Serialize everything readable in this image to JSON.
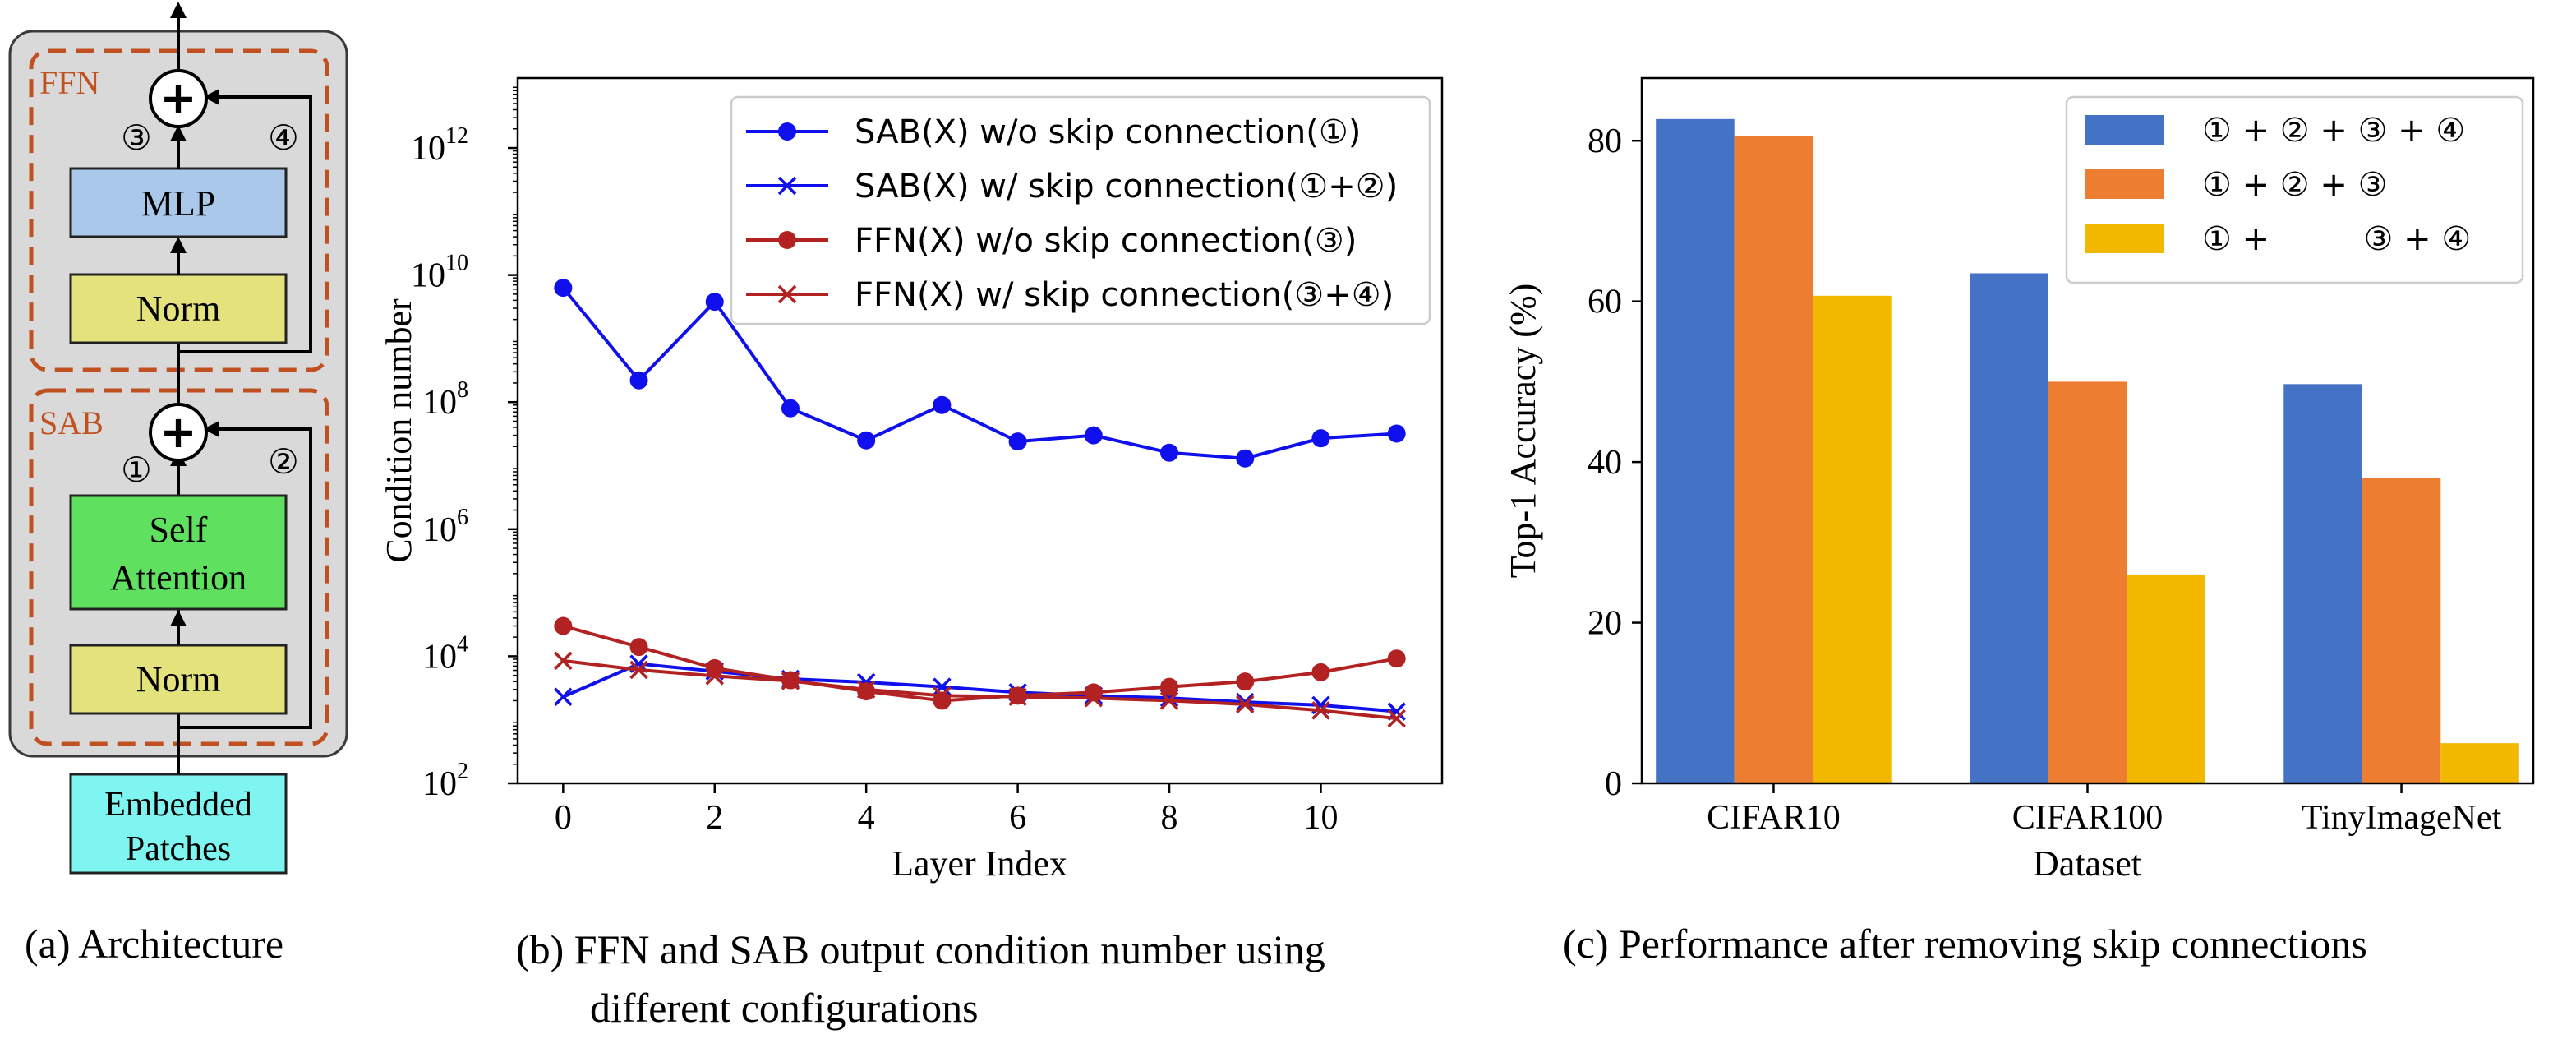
{
  "architecture": {
    "caption": "(a) Architecture",
    "blocks": {
      "ffn_label": "FFN",
      "sab_label": "SAB",
      "mlp": "MLP",
      "norm_top": "Norm",
      "self_attention_line1": "Self",
      "self_attention_line2": "Attention",
      "norm_bottom": "Norm",
      "embedded_line1": "Embedded",
      "embedded_line2": "Patches",
      "add_symbol": "+",
      "marker1": "①",
      "marker2": "②",
      "marker3": "③",
      "marker4": "④"
    },
    "colors": {
      "outer_bg": "#d9d9d9",
      "dashed": "#c0501f",
      "mlp": "#a9c8ea",
      "norm": "#e4e27c",
      "attention": "#5fe05f",
      "embedded": "#7ff5f2"
    }
  },
  "chart_data": [
    {
      "type": "line",
      "caption_line1": "(b) FFN and SAB output condition number using",
      "caption_line2": "different configurations",
      "xlabel": "Layer Index",
      "ylabel": "Condition number",
      "yscale": "log",
      "ylim_exp": [
        2,
        13.1
      ],
      "xlim": [
        -0.6,
        11.6
      ],
      "xticks": [
        0,
        2,
        4,
        6,
        8,
        10
      ],
      "xtick_labels": [
        "0",
        "2",
        "4",
        "6",
        "8",
        "10"
      ],
      "yticks_exp": [
        2,
        4,
        6,
        8,
        10,
        12
      ],
      "ytick_base": "10",
      "ytick_exps": [
        "2",
        "4",
        "6",
        "8",
        "10",
        "12"
      ],
      "legend_position": "top-right",
      "x": [
        0,
        1,
        2,
        3,
        4,
        5,
        6,
        7,
        8,
        9,
        10,
        11
      ],
      "series": [
        {
          "name": "SAB(X) w/o skip connection(①)",
          "color": "#1010ee",
          "marker": "circle",
          "values": [
            6300000000.0,
            220000000.0,
            3800000000.0,
            80000000.0,
            25000000.0,
            90000000.0,
            24000000.0,
            30000000.0,
            16000000.0,
            13000000.0,
            27000000.0,
            32000000.0
          ]
        },
        {
          "name": "SAB(X) w/ skip connection(①+②)",
          "color": "#1010ee",
          "marker": "x",
          "values": [
            2300,
            7600,
            5800,
            4400,
            3900,
            3300,
            2700,
            2400,
            2200,
            1900,
            1700,
            1350
          ]
        },
        {
          "name": "FFN(X) w/o skip connection(③)",
          "color": "#b22222",
          "marker": "circle",
          "values": [
            30000,
            14000,
            6500,
            4200,
            2800,
            2000,
            2400,
            2700,
            3300,
            4000,
            5600,
            9200
          ]
        },
        {
          "name": "FFN(X) w/ skip connection(③+④)",
          "color": "#b22222",
          "marker": "x",
          "values": [
            8500,
            6100,
            4900,
            4100,
            3000,
            2400,
            2300,
            2200,
            2000,
            1750,
            1400,
            1050
          ]
        }
      ]
    },
    {
      "type": "bar",
      "caption": "(c) Performance after removing skip connections",
      "xlabel": "Dataset",
      "ylabel": "Top-1 Accuracy (%)",
      "ylim": [
        0,
        87.8
      ],
      "yticks": [
        0,
        20,
        40,
        60,
        80
      ],
      "ytick_labels": [
        "0",
        "20",
        "40",
        "60",
        "80"
      ],
      "categories": [
        "CIFAR10",
        "CIFAR100",
        "TinyImageNet"
      ],
      "legend_position": "top-right",
      "series": [
        {
          "name": "① + ② + ③ + ④",
          "color": "#4472c4",
          "values": [
            82.7,
            63.5,
            49.7
          ]
        },
        {
          "name": "① + ② + ③",
          "color": "#ed7d31",
          "values": [
            80.6,
            50.0,
            38.0
          ]
        },
        {
          "name": "① +         ③ + ④",
          "color": "#f2b800",
          "values": [
            60.7,
            26.0,
            5.0
          ]
        }
      ]
    }
  ]
}
